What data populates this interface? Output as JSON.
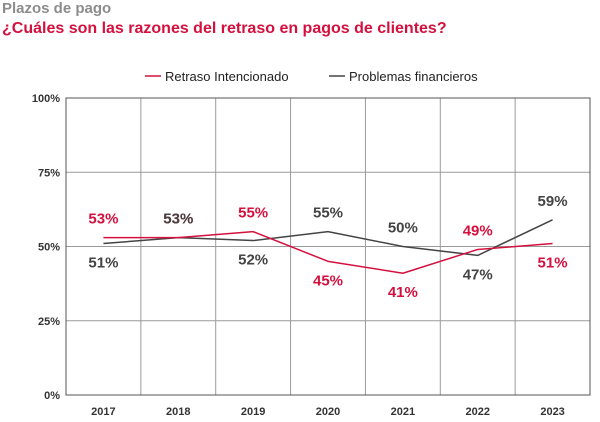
{
  "header": {
    "title": "Plazos de pago",
    "subtitle": "¿Cuáles son las razones del retraso en pagos de clientes?"
  },
  "colors": {
    "series1": "#d4103e",
    "series2": "#444444",
    "grid": "#9a9a9a",
    "plot_border": "#555555"
  },
  "chart_data": {
    "type": "line",
    "x": [
      "2017",
      "2018",
      "2019",
      "2020",
      "2021",
      "2022",
      "2023"
    ],
    "ylim": [
      0,
      100
    ],
    "yticks": [
      0,
      25,
      50,
      75,
      100
    ],
    "ytick_labels": [
      "0%",
      "25%",
      "50%",
      "75%",
      "100%"
    ],
    "grid": true,
    "legend_position": "top-center",
    "series": [
      {
        "name": "Retraso Intencionado",
        "color": "#d4103e",
        "values": [
          53,
          53,
          55,
          45,
          41,
          49,
          51
        ],
        "labels": [
          "53%",
          "53%",
          "55%",
          "45%",
          "41%",
          "49%",
          "51%"
        ]
      },
      {
        "name": "Problemas financieros",
        "color": "#444444",
        "values": [
          51,
          53,
          52,
          55,
          50,
          47,
          59
        ],
        "labels": [
          "51%",
          "53%",
          "52%",
          "55%",
          "50%",
          "47%",
          "59%"
        ]
      }
    ]
  }
}
